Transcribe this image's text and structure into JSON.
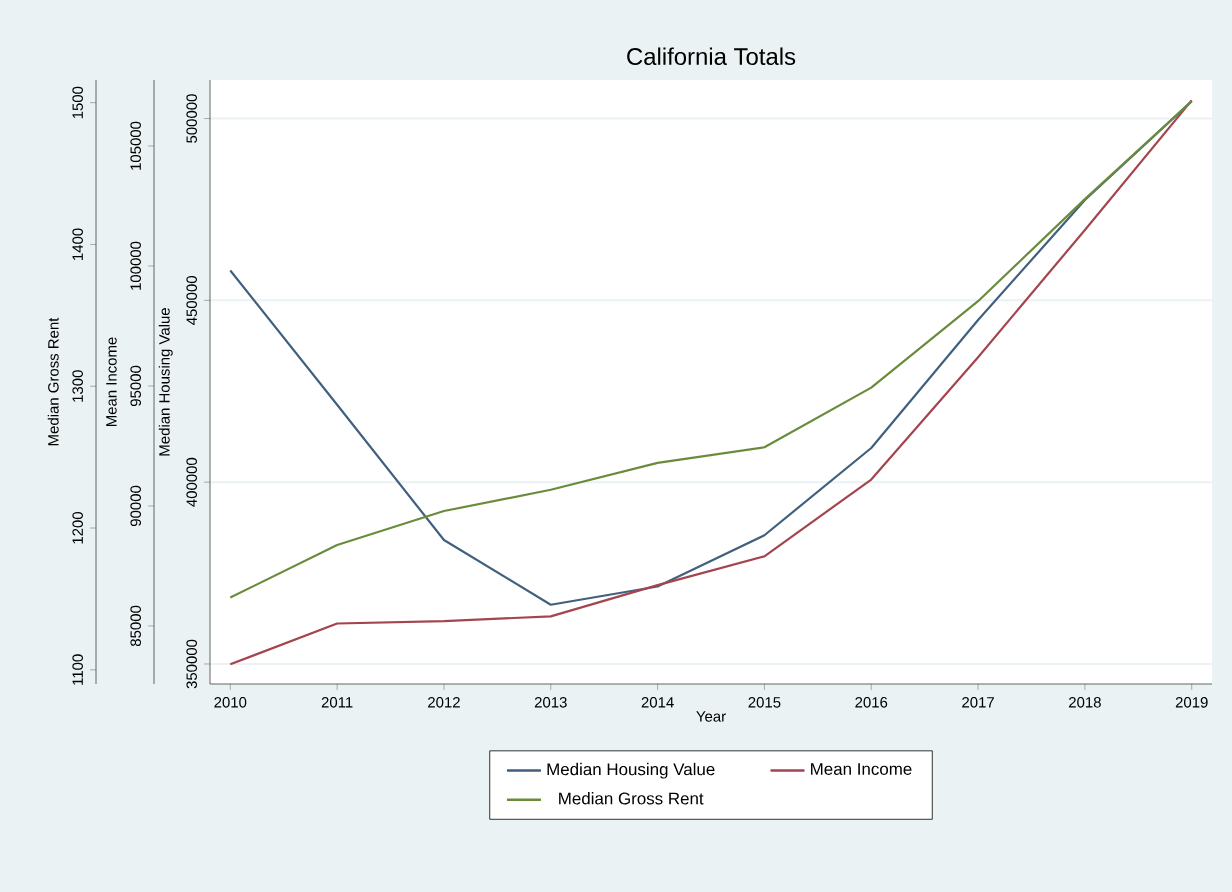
{
  "chart_data": {
    "type": "line",
    "title": "California Totals",
    "xlabel": "Year",
    "ylabel": "Median Housing Value",
    "y2label": "Mean Income",
    "y3label": "Median Gross Rent",
    "x": [
      2010,
      2011,
      2012,
      2013,
      2014,
      2015,
      2016,
      2017,
      2018,
      2019
    ],
    "xlim": [
      2009.81,
      2019.19
    ],
    "xticks": [
      2010,
      2011,
      2012,
      2013,
      2014,
      2015,
      2016,
      2017,
      2018,
      2019
    ],
    "ylim": [
      344500,
      510600
    ],
    "yticks": [
      350000,
      400000,
      450000,
      500000
    ],
    "y2lim": [
      82580,
      107750
    ],
    "y2ticks": [
      85000,
      90000,
      95000,
      100000,
      105000
    ],
    "y3lim": [
      1090,
      1516
    ],
    "y3ticks": [
      1100,
      1200,
      1300,
      1400,
      1500
    ],
    "series": [
      {
        "name": "Median Housing Value",
        "color": "#41607f",
        "axis": "y",
        "values": [
          458200,
          421300,
          384100,
          366300,
          371300,
          385400,
          409400,
          444600,
          477600,
          504800
        ]
      },
      {
        "name": "Mean Income",
        "color": "#a4444f",
        "axis": "y2",
        "values": [
          83400,
          85100,
          85200,
          85400,
          86700,
          87900,
          91100,
          96200,
          101500,
          106900
        ]
      },
      {
        "name": "Median Gross Rent",
        "color": "#6a8b3c",
        "axis": "y3",
        "values": [
          1151,
          1188,
          1212,
          1227,
          1246,
          1257,
          1299,
          1360,
          1432,
          1501
        ]
      }
    ],
    "grid": "y",
    "legend": "bottom"
  }
}
